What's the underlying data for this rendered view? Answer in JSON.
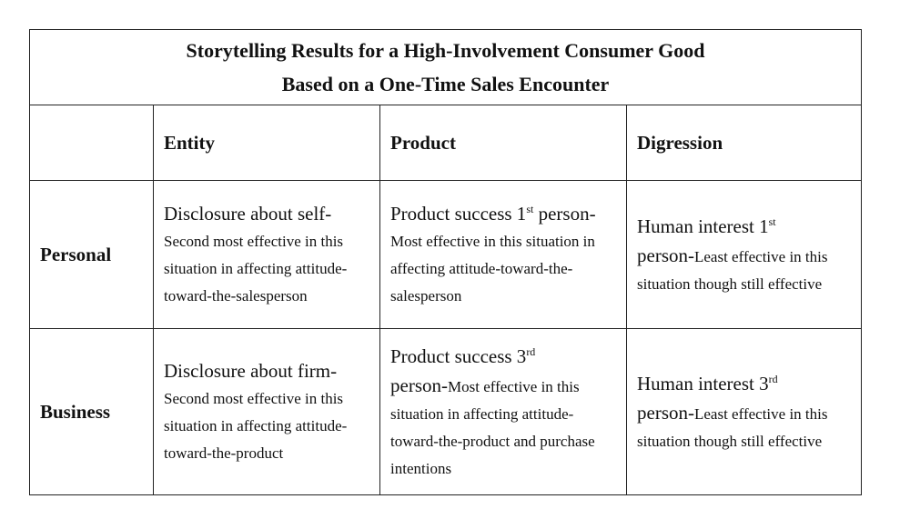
{
  "title": {
    "line1": "Storytelling Results for a High-Involvement Consumer Good",
    "line2": "Based on a One-Time Sales Encounter"
  },
  "columns": {
    "blank": "",
    "entity": "Entity",
    "product": "Product",
    "digression": "Digression"
  },
  "rows": [
    {
      "label": "Personal",
      "entity": {
        "lead": "Disclosure about self-",
        "desc": "Second most effective in this situation in affecting attitude-toward-the-salesperson"
      },
      "product": {
        "lead_a": "Product success 1",
        "sup": "st",
        "lead_b": " person-",
        "desc": "Most effective in this situation in affecting attitude-toward-the-salesperson"
      },
      "digression": {
        "lead_a": "Human interest 1",
        "sup": "st",
        "lead_b": "person-",
        "desc": "Least effective in this situation though still effective"
      }
    },
    {
      "label": "Business",
      "entity": {
        "lead": "Disclosure about firm-",
        "desc": "Second most effective in this situation in affecting attitude-toward-the-product"
      },
      "product": {
        "lead_a": "Product success 3",
        "sup": "rd",
        "lead_b": "person-",
        "desc": "Most effective in this situation in affecting attitude-toward-the-product and purchase intentions"
      },
      "digression": {
        "lead_a": "Human interest 3",
        "sup": "rd",
        "lead_b": "person-",
        "desc": "Least effective in this situation though still effective"
      }
    }
  ]
}
